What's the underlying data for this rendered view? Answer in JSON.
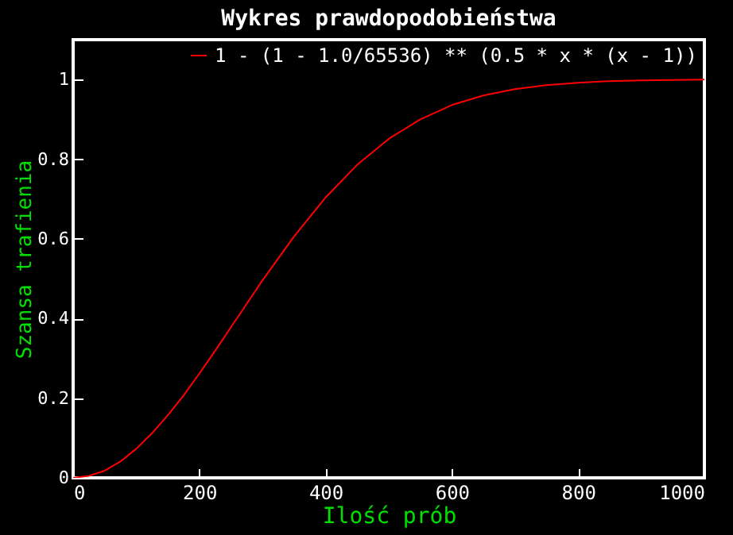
{
  "chart_data": {
    "type": "line",
    "title": "Wykres prawdopodobieństwa",
    "xlabel": "Ilość prób",
    "ylabel": "Szansa trafienia",
    "x": [
      0,
      25,
      50,
      75,
      100,
      125,
      150,
      175,
      200,
      225,
      250,
      275,
      300,
      350,
      400,
      450,
      500,
      550,
      600,
      650,
      700,
      750,
      800,
      850,
      900,
      950,
      1000
    ],
    "series": [
      {
        "name": "1 - (1 - 1.0/65536) ** (0.5 * x * (x - 1))",
        "color": "#ff0000",
        "values": [
          0,
          0.005,
          0.018,
          0.041,
          0.073,
          0.112,
          0.157,
          0.207,
          0.262,
          0.319,
          0.378,
          0.437,
          0.496,
          0.606,
          0.704,
          0.786,
          0.851,
          0.9,
          0.936,
          0.96,
          0.976,
          0.986,
          0.992,
          0.996,
          0.998,
          0.999,
          1.0
        ]
      }
    ],
    "xlim": [
      0,
      1000
    ],
    "xticks": [
      0,
      200,
      400,
      600,
      800,
      1000
    ],
    "ylim": [
      0,
      1.1
    ],
    "yticks": [
      0,
      0.2,
      0.4,
      0.6,
      0.8,
      1
    ],
    "grid": false,
    "legend": "top right",
    "marker": "none",
    "line_style": "solid"
  }
}
